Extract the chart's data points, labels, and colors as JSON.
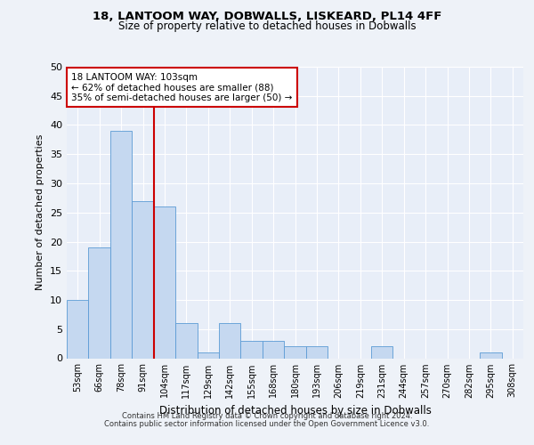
{
  "title1": "18, LANTOOM WAY, DOBWALLS, LISKEARD, PL14 4FF",
  "title2": "Size of property relative to detached houses in Dobwalls",
  "xlabel": "Distribution of detached houses by size in Dobwalls",
  "ylabel": "Number of detached properties",
  "categories": [
    "53sqm",
    "66sqm",
    "78sqm",
    "91sqm",
    "104sqm",
    "117sqm",
    "129sqm",
    "142sqm",
    "155sqm",
    "168sqm",
    "180sqm",
    "193sqm",
    "206sqm",
    "219sqm",
    "231sqm",
    "244sqm",
    "257sqm",
    "270sqm",
    "282sqm",
    "295sqm",
    "308sqm"
  ],
  "values": [
    10,
    19,
    39,
    27,
    26,
    6,
    1,
    6,
    3,
    3,
    2,
    2,
    0,
    0,
    2,
    0,
    0,
    0,
    0,
    1,
    0
  ],
  "bar_color": "#c5d8f0",
  "bar_edge_color": "#5b9bd5",
  "vline_color": "#cc0000",
  "annotation_line1": "18 LANTOOM WAY: 103sqm",
  "annotation_line2": "← 62% of detached houses are smaller (88)",
  "annotation_line3": "35% of semi-detached houses are larger (50) →",
  "annotation_box_color": "#ffffff",
  "annotation_box_edge_color": "#cc0000",
  "ylim": [
    0,
    50
  ],
  "yticks": [
    0,
    5,
    10,
    15,
    20,
    25,
    30,
    35,
    40,
    45,
    50
  ],
  "background_color": "#e8eef8",
  "grid_color": "#ffffff",
  "fig_bg_color": "#eef2f8",
  "footer1": "Contains HM Land Registry data © Crown copyright and database right 2024.",
  "footer2": "Contains public sector information licensed under the Open Government Licence v3.0."
}
